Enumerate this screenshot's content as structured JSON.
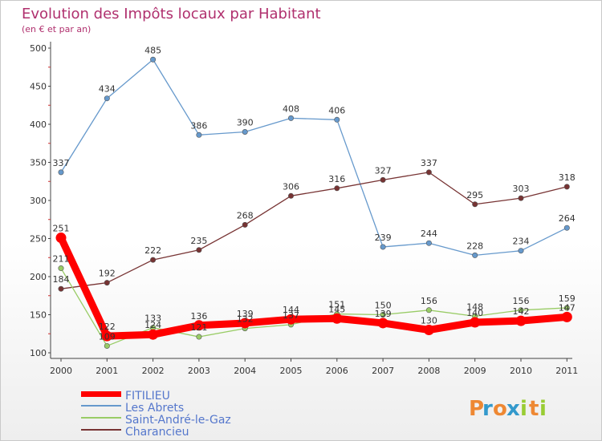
{
  "chart_data": {
    "type": "line",
    "title": "Evolution des Impôts locaux par Habitant",
    "subtitle": "(en € et par an)",
    "xlabel": "",
    "ylabel": "",
    "categories": [
      "2000",
      "2001",
      "2002",
      "2003",
      "2004",
      "2005",
      "2006",
      "2007",
      "2008",
      "2009",
      "2010",
      "2011"
    ],
    "ylim": [
      100,
      500
    ],
    "yticks": [
      100,
      150,
      200,
      250,
      300,
      350,
      400,
      450,
      500
    ],
    "grid": false,
    "legend_position": "bottom-left",
    "series": [
      {
        "name": "FITILIEU",
        "color": "#ff0000",
        "values": [
          251,
          122,
          124,
          136,
          139,
          144,
          145,
          139,
          130,
          140,
          142,
          147
        ],
        "labels": [
          "251",
          "122",
          "124",
          "136",
          "139",
          "144",
          "145",
          "139",
          "130",
          "140",
          "142",
          "147"
        ]
      },
      {
        "name": "Les Abrets",
        "color": "#6699cc",
        "values": [
          337,
          434,
          485,
          386,
          390,
          408,
          406,
          239,
          244,
          228,
          234,
          264
        ],
        "labels": [
          "337",
          "434",
          "485",
          "386",
          "390",
          "408",
          "406",
          "239",
          "244",
          "228",
          "234",
          "264"
        ]
      },
      {
        "name": "Saint-André-le-Gaz",
        "color": "#99cc66",
        "values": [
          211,
          109,
          133,
          121,
          132,
          137,
          151,
          150,
          156,
          148,
          156,
          159
        ],
        "labels": [
          "211",
          "109",
          "133",
          "121",
          "132",
          "137",
          "151",
          "150",
          "156",
          "148",
          "156",
          "159"
        ]
      },
      {
        "name": "Charancieu",
        "color": "#773333",
        "values": [
          184,
          192,
          222,
          235,
          268,
          306,
          316,
          327,
          337,
          295,
          303,
          318
        ],
        "labels": [
          "184",
          "192",
          "222",
          "235",
          "268",
          "306",
          "316",
          "327",
          "337",
          "295",
          "303",
          "318"
        ]
      }
    ]
  },
  "branding": {
    "logo_text": "Proxiti",
    "logo_letters": [
      "P",
      "r",
      "o",
      "x",
      "i",
      "t",
      "i"
    ]
  }
}
